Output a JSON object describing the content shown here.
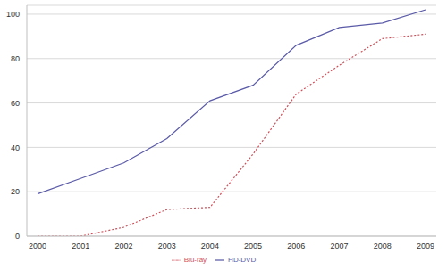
{
  "chart_data": {
    "type": "line",
    "categories": [
      "2000",
      "2001",
      "2002",
      "2003",
      "2004",
      "2005",
      "2006",
      "2007",
      "2008",
      "2009"
    ],
    "series": [
      {
        "name": "HD-DVD",
        "color": "#5a5aa8",
        "line_style": "solid",
        "values": [
          19,
          26,
          33,
          44,
          61,
          68,
          86,
          94,
          96,
          102
        ]
      },
      {
        "name": "Blu-ray",
        "color": "#d0505a",
        "line_style": "dotted",
        "values": [
          0,
          0,
          4,
          12,
          13,
          37,
          64,
          77,
          89,
          91
        ]
      }
    ],
    "ylim": [
      0,
      104
    ],
    "yticks": [
      0,
      20,
      40,
      60,
      80,
      100
    ],
    "grid": true,
    "legend": "bottom"
  }
}
